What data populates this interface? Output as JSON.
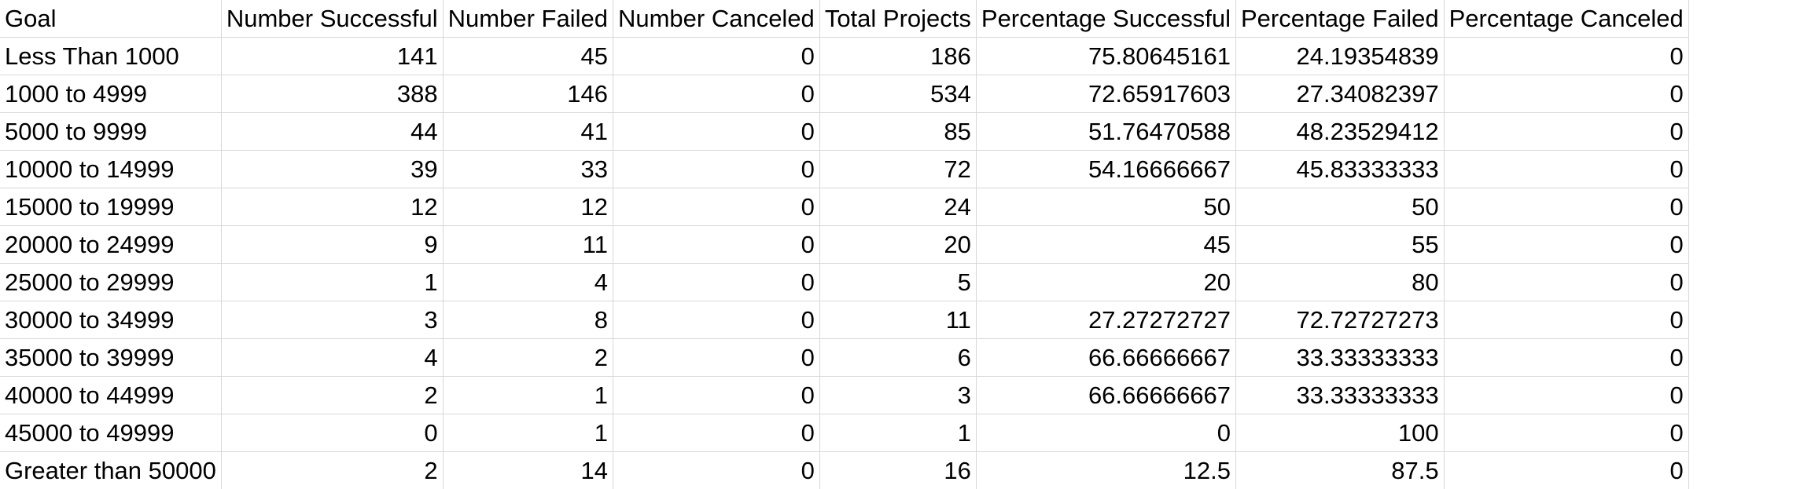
{
  "sheet": {
    "headers": [
      "Goal",
      "Number Successful",
      "Number Failed",
      "Number Canceled",
      "Total Projects",
      "Percentage Successful",
      "Percentage Failed",
      "Percentage Canceled"
    ],
    "rows": [
      [
        "Less Than 1000",
        "141",
        "45",
        "0",
        "186",
        "75.80645161",
        "24.19354839",
        "0"
      ],
      [
        "1000 to 4999",
        "388",
        "146",
        "0",
        "534",
        "72.65917603",
        "27.34082397",
        "0"
      ],
      [
        "5000 to 9999",
        "44",
        "41",
        "0",
        "85",
        "51.76470588",
        "48.23529412",
        "0"
      ],
      [
        "10000 to 14999",
        "39",
        "33",
        "0",
        "72",
        "54.16666667",
        "45.83333333",
        "0"
      ],
      [
        "15000 to 19999",
        "12",
        "12",
        "0",
        "24",
        "50",
        "50",
        "0"
      ],
      [
        "20000 to 24999",
        "9",
        "11",
        "0",
        "20",
        "45",
        "55",
        "0"
      ],
      [
        "25000 to 29999",
        "1",
        "4",
        "0",
        "5",
        "20",
        "80",
        "0"
      ],
      [
        "30000 to 34999",
        "3",
        "8",
        "0",
        "11",
        "27.27272727",
        "72.72727273",
        "0"
      ],
      [
        "35000 to 39999",
        "4",
        "2",
        "0",
        "6",
        "66.66666667",
        "33.33333333",
        "0"
      ],
      [
        "40000 to 44999",
        "2",
        "1",
        "0",
        "3",
        "66.66666667",
        "33.33333333",
        "0"
      ],
      [
        "45000 to 49999",
        "0",
        "1",
        "0",
        "1",
        "0",
        "100",
        "0"
      ],
      [
        "Greater than 50000",
        "2",
        "14",
        "0",
        "16",
        "12.5",
        "87.5",
        "0"
      ]
    ]
  }
}
